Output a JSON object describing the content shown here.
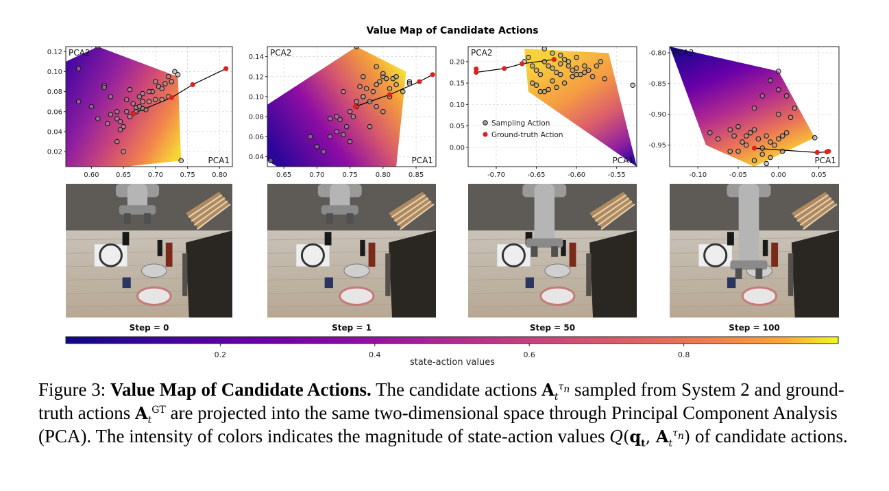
{
  "figure": {
    "title": "Value Map of Candidate Actions",
    "xlabel": "PCA1",
    "ylabel": "PCA2",
    "legend": {
      "sampling": "Sampling Action",
      "ground_truth": "Ground-truth Action"
    },
    "panels": [
      {
        "step": "Step = 0",
        "xticks": [
          "0.60",
          "0.65",
          "0.70",
          "0.75",
          "0.80"
        ],
        "yticks": [
          "0.02",
          "0.04",
          "0.06",
          "0.08",
          "0.10",
          "0.12"
        ]
      },
      {
        "step": "Step = 1",
        "xticks": [
          "0.65",
          "0.70",
          "0.75",
          "0.80",
          "0.85"
        ],
        "yticks": [
          "0.04",
          "0.06",
          "0.08",
          "0.10",
          "0.12",
          "0.14"
        ]
      },
      {
        "step": "Step = 50",
        "xticks": [
          "-0.70",
          "-0.65",
          "-0.60",
          "-0.55"
        ],
        "yticks": [
          "0.00",
          "0.05",
          "0.10",
          "0.15",
          "0.20"
        ]
      },
      {
        "step": "Step = 100",
        "xticks": [
          "-0.10",
          "-0.05",
          "0.00",
          "0.05"
        ],
        "yticks": [
          "-0.95",
          "-0.90",
          "-0.85",
          "-0.80"
        ]
      }
    ],
    "colorbar": {
      "label": "state-action values",
      "ticks": [
        "0.2",
        "0.4",
        "0.6",
        "0.8"
      ]
    },
    "colors": {
      "sampling_point": "#a0a0a0",
      "ground_truth_point": "#e02020",
      "colormap": "plasma"
    }
  },
  "chart_data": [
    {
      "type": "scatter",
      "title": "Value Map of Candidate Actions",
      "xlabel": "PCA1",
      "ylabel": "PCA2",
      "xlim": [
        0.56,
        0.82
      ],
      "ylim": [
        0.005,
        0.125
      ],
      "series": [
        {
          "name": "Sampling Action",
          "x": [
            0.58,
            0.61,
            0.62,
            0.63,
            0.64,
            0.645,
            0.65,
            0.655,
            0.66,
            0.665,
            0.67,
            0.675,
            0.68,
            0.685,
            0.69,
            0.695,
            0.7,
            0.705,
            0.71,
            0.715,
            0.72,
            0.725,
            0.73,
            0.735,
            0.64,
            0.65,
            0.66,
            0.67,
            0.675,
            0.68,
            0.69,
            0.7,
            0.71,
            0.72,
            0.62,
            0.63,
            0.64,
            0.655,
            0.665,
            0.68,
            0.74,
            0.58,
            0.6,
            0.61,
            0.625,
            0.645
          ],
          "y": [
            0.103,
            0.125,
            0.086,
            0.075,
            0.06,
            0.05,
            0.045,
            0.072,
            0.082,
            0.068,
            0.064,
            0.075,
            0.078,
            0.062,
            0.07,
            0.08,
            0.072,
            0.085,
            0.083,
            0.088,
            0.095,
            0.09,
            0.1,
            0.097,
            0.03,
            0.02,
            0.055,
            0.06,
            0.065,
            0.07,
            0.08,
            0.09,
            0.072,
            0.075,
            0.084,
            0.057,
            0.053,
            0.06,
            0.058,
            0.063,
            0.011,
            0.07,
            0.065,
            0.053,
            0.048,
            0.042
          ]
        },
        {
          "name": "Ground-truth Action",
          "x": [
            0.665,
            0.725,
            0.758,
            0.81
          ],
          "y": [
            0.058,
            0.074,
            0.087,
            0.103
          ]
        }
      ]
    },
    {
      "type": "scatter",
      "title": "Value Map of Candidate Actions",
      "xlabel": "PCA1",
      "ylabel": "PCA2",
      "xlim": [
        0.625,
        0.88
      ],
      "ylim": [
        0.03,
        0.15
      ],
      "series": [
        {
          "name": "Sampling Action",
          "x": [
            0.63,
            0.76,
            0.72,
            0.73,
            0.735,
            0.74,
            0.745,
            0.75,
            0.755,
            0.76,
            0.765,
            0.77,
            0.775,
            0.78,
            0.785,
            0.79,
            0.795,
            0.8,
            0.805,
            0.81,
            0.815,
            0.82,
            0.83,
            0.84,
            0.72,
            0.73,
            0.75,
            0.77,
            0.79,
            0.8,
            0.78,
            0.76,
            0.74,
            0.71,
            0.7,
            0.69,
            0.8,
            0.82,
            0.84,
            0.81,
            0.79,
            0.77
          ],
          "y": [
            0.036,
            0.15,
            0.078,
            0.08,
            0.077,
            0.062,
            0.07,
            0.085,
            0.08,
            0.09,
            0.11,
            0.1,
            0.108,
            0.095,
            0.105,
            0.112,
            0.115,
            0.12,
            0.118,
            0.108,
            0.118,
            0.12,
            0.105,
            0.115,
            0.06,
            0.065,
            0.055,
            0.1,
            0.09,
            0.085,
            0.07,
            0.095,
            0.105,
            0.045,
            0.05,
            0.06,
            0.123,
            0.112,
            0.113,
            0.1,
            0.13,
            0.12
          ]
        },
        {
          "name": "Ground-truth Action",
          "x": [
            0.758,
            0.81,
            0.855,
            0.875
          ],
          "y": [
            0.09,
            0.102,
            0.115,
            0.122
          ]
        }
      ]
    },
    {
      "type": "scatter",
      "title": "Value Map of Candidate Actions",
      "xlabel": "PCA1",
      "ylabel": "PCA2",
      "xlim": [
        -0.735,
        -0.525
      ],
      "ylim": [
        -0.045,
        0.235
      ],
      "series": [
        {
          "name": "Sampling Action",
          "x": [
            -0.665,
            -0.66,
            -0.655,
            -0.65,
            -0.645,
            -0.64,
            -0.635,
            -0.63,
            -0.625,
            -0.62,
            -0.615,
            -0.61,
            -0.605,
            -0.6,
            -0.595,
            -0.59,
            -0.585,
            -0.58,
            -0.575,
            -0.57,
            -0.565,
            -0.645,
            -0.635,
            -0.625,
            -0.615,
            -0.605,
            -0.655,
            -0.65,
            -0.64,
            -0.63,
            -0.62,
            -0.61,
            -0.6,
            -0.59,
            -0.53,
            -0.64,
            -0.63,
            -0.62,
            -0.6
          ],
          "y": [
            0.2,
            0.21,
            0.19,
            0.18,
            0.17,
            0.2,
            0.19,
            0.185,
            0.175,
            0.195,
            0.205,
            0.19,
            0.18,
            0.185,
            0.17,
            0.175,
            0.18,
            0.165,
            0.19,
            0.2,
            0.16,
            0.13,
            0.135,
            0.14,
            0.15,
            0.165,
            0.15,
            0.145,
            0.13,
            0.155,
            0.17,
            0.2,
            0.21,
            0.19,
            0.145,
            0.23,
            0.22,
            0.215,
            0.17
          ]
        },
        {
          "name": "Ground-truth Action",
          "x": [
            -0.725,
            -0.725,
            -0.69,
            -0.668,
            -0.628
          ],
          "y": [
            0.183,
            0.175,
            0.184,
            0.195,
            0.205
          ]
        }
      ]
    },
    {
      "type": "scatter",
      "title": "Value Map of Candidate Actions",
      "xlabel": "PCA1",
      "ylabel": "PCA2",
      "xlim": [
        -0.135,
        0.075
      ],
      "ylim": [
        -0.985,
        -0.79
      ],
      "series": [
        {
          "name": "Sampling Action",
          "x": [
            0.0,
            -0.085,
            -0.075,
            -0.06,
            -0.055,
            -0.05,
            -0.045,
            -0.04,
            -0.035,
            -0.03,
            -0.025,
            -0.02,
            -0.015,
            -0.01,
            -0.005,
            0.0,
            0.005,
            0.01,
            0.015,
            -0.04,
            -0.03,
            -0.02,
            -0.01,
            0.0,
            0.01,
            -0.05,
            -0.02,
            -0.01,
            0.005,
            0.02,
            0.045,
            -0.03,
            -0.015,
            0.0,
            -0.06
          ],
          "y": [
            -0.83,
            -0.93,
            -0.94,
            -0.925,
            -0.935,
            -0.96,
            -0.945,
            -0.935,
            -0.93,
            -0.925,
            -0.94,
            -0.955,
            -0.935,
            -0.945,
            -0.95,
            -0.94,
            -0.935,
            -0.93,
            -0.905,
            -0.95,
            -0.89,
            -0.87,
            -0.845,
            -0.86,
            -0.87,
            -0.92,
            -0.965,
            -0.97,
            -0.96,
            -0.89,
            -0.938,
            -0.975,
            -0.98,
            -0.9,
            -0.96
          ]
        },
        {
          "name": "Ground-truth Action",
          "x": [
            -0.03,
            0.048,
            0.06,
            0.062
          ],
          "y": [
            -0.955,
            -0.962,
            -0.961,
            -0.96
          ]
        }
      ]
    }
  ]
}
